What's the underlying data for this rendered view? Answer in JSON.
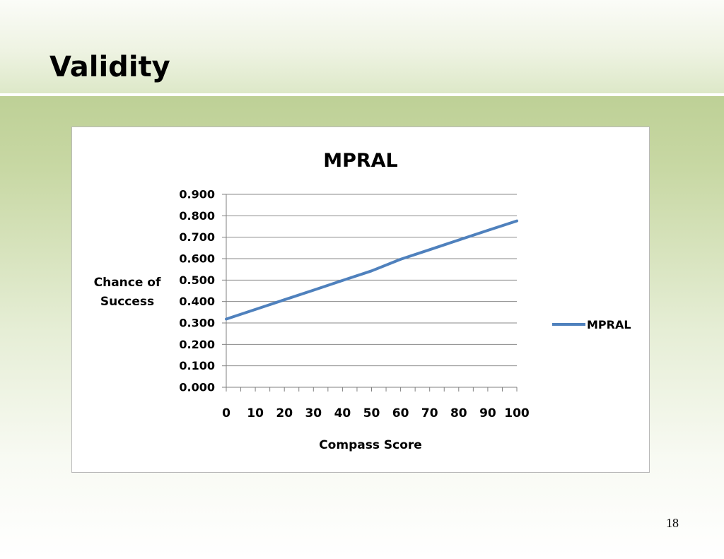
{
  "slide": {
    "title": "Validity",
    "page_number": "18"
  },
  "chart_data": {
    "type": "line",
    "title": "MPRAL",
    "xlabel": "Compass Score",
    "ylabel_lines": [
      "Chance of",
      "Success"
    ],
    "xlim": [
      0,
      100
    ],
    "ylim": [
      0,
      0.9
    ],
    "x_ticks": [
      0,
      10,
      20,
      30,
      40,
      50,
      60,
      70,
      80,
      90,
      100
    ],
    "y_ticks": [
      "0.000",
      "0.100",
      "0.200",
      "0.300",
      "0.400",
      "0.500",
      "0.600",
      "0.700",
      "0.800",
      "0.900"
    ],
    "grid": "horizontal",
    "legend_position": "right",
    "series": [
      {
        "name": "MPRAL",
        "color": "#4f81bd",
        "x": [
          0,
          10,
          20,
          30,
          40,
          50,
          60,
          70,
          80,
          90,
          100
        ],
        "y": [
          0.318,
          0.363,
          0.408,
          0.453,
          0.498,
          0.543,
          0.597,
          0.642,
          0.687,
          0.732,
          0.776
        ]
      }
    ]
  }
}
